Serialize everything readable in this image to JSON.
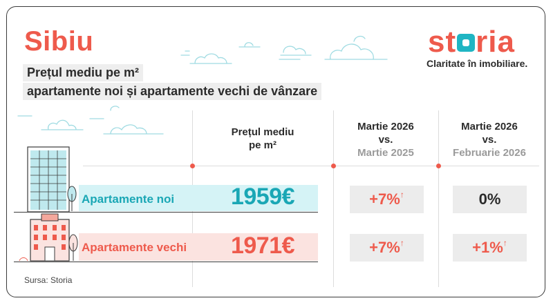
{
  "header": {
    "city": "Sibiu",
    "subtitle_line1": "Prețul mediu pe m²",
    "subtitle_line2": "apartamente noi și apartamente vechi de vânzare"
  },
  "brand": {
    "name_prefix": "st",
    "name_suffix": "ria",
    "tagline": "Claritate în imobiliare."
  },
  "columns": {
    "price": {
      "line1": "Prețul mediu",
      "line2": "pe m²"
    },
    "yoy": {
      "line1": "Martie 2026",
      "line2": "vs.",
      "line3": "Martie 2025"
    },
    "mom": {
      "line1": "Martie 2026",
      "line2": "vs.",
      "line3": "Februarie 2026"
    }
  },
  "rows": [
    {
      "label": "Apartamente noi",
      "price": "1959€",
      "yoy": "+7%",
      "yoy_arrow": "↑",
      "mom": "0%",
      "mom_arrow": ""
    },
    {
      "label": "Apartamente vechi",
      "price": "1971€",
      "yoy": "+7%",
      "yoy_arrow": "↑",
      "mom": "+1%",
      "mom_arrow": "↑"
    }
  ],
  "source": "Sursa: Storia",
  "colors": {
    "accent": "#ee5a4c",
    "teal": "#1fb5c3",
    "teal_text": "#1aa7b5",
    "gray_box": "#ececec"
  }
}
